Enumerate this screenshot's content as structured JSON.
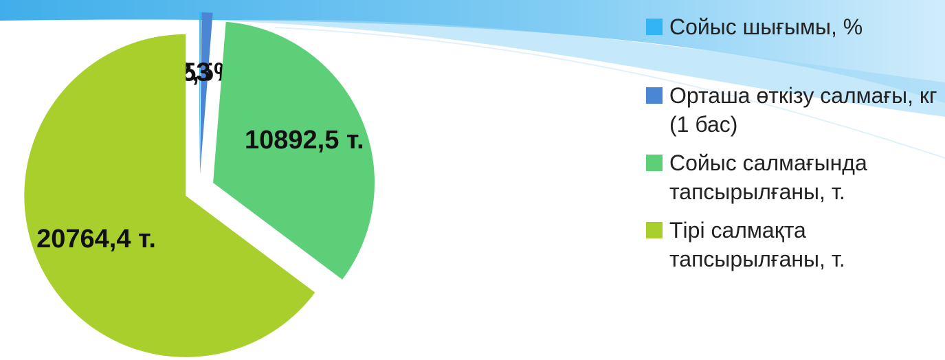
{
  "chart_data": {
    "type": "pie",
    "categories": [
      "Сойыс шығымы, %",
      "Орташа өткізу салмағы, кг (1 бас)",
      "Сойыс салмағында тапсырылғаны, т.",
      "Тірі салмақта тапсырылғаны, т."
    ],
    "values": [
      52.5,
      353,
      10892.5,
      20764.4
    ],
    "value_labels": [
      "52,5%",
      "353 кг",
      "10892,5 т.",
      "20764,4 т."
    ],
    "colors": [
      "#33b5f5",
      "#4a86d4",
      "#5ccf78",
      "#a9cf2c"
    ]
  }
}
